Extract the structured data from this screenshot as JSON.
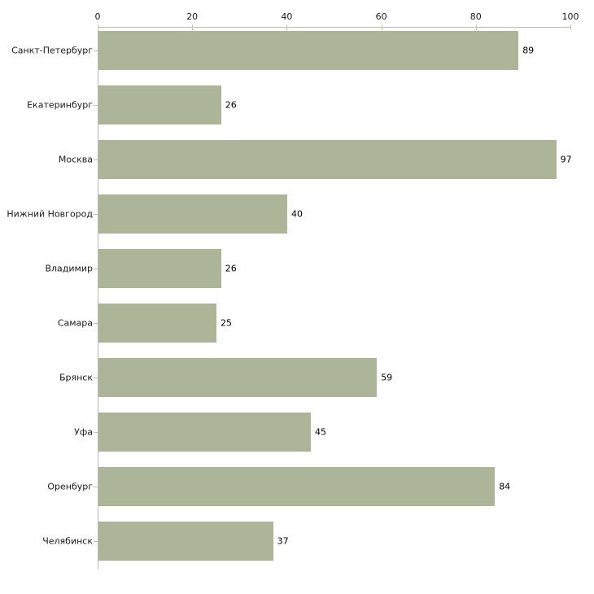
{
  "chart_data": {
    "type": "bar",
    "orientation": "horizontal",
    "title": "",
    "xlabel": "",
    "ylabel": "",
    "categories": [
      "Санкт-Петербург",
      "Екатеринбург",
      "Москва",
      "Нижний Новгород",
      "Владимир",
      "Самара",
      "Брянск",
      "Уфа",
      "Оренбург",
      "Челябинск"
    ],
    "values": [
      89,
      26,
      97,
      40,
      26,
      25,
      59,
      45,
      84,
      37
    ],
    "value_labels": [
      "89",
      "26",
      "97",
      "40",
      "26",
      "25",
      "59",
      "45",
      "84",
      "37"
    ],
    "x_axis": {
      "position": "top",
      "ticks": [
        0,
        20,
        40,
        60,
        80,
        100
      ],
      "range": [
        0,
        100
      ]
    },
    "grid": false,
    "legend": false,
    "colors": {
      "bar": "#adb598",
      "axis_line": "#b9b9b9",
      "tick": "#c5c99f",
      "text": "#1a1a1a",
      "value_text": "#000000",
      "background": "#ffffff"
    }
  }
}
